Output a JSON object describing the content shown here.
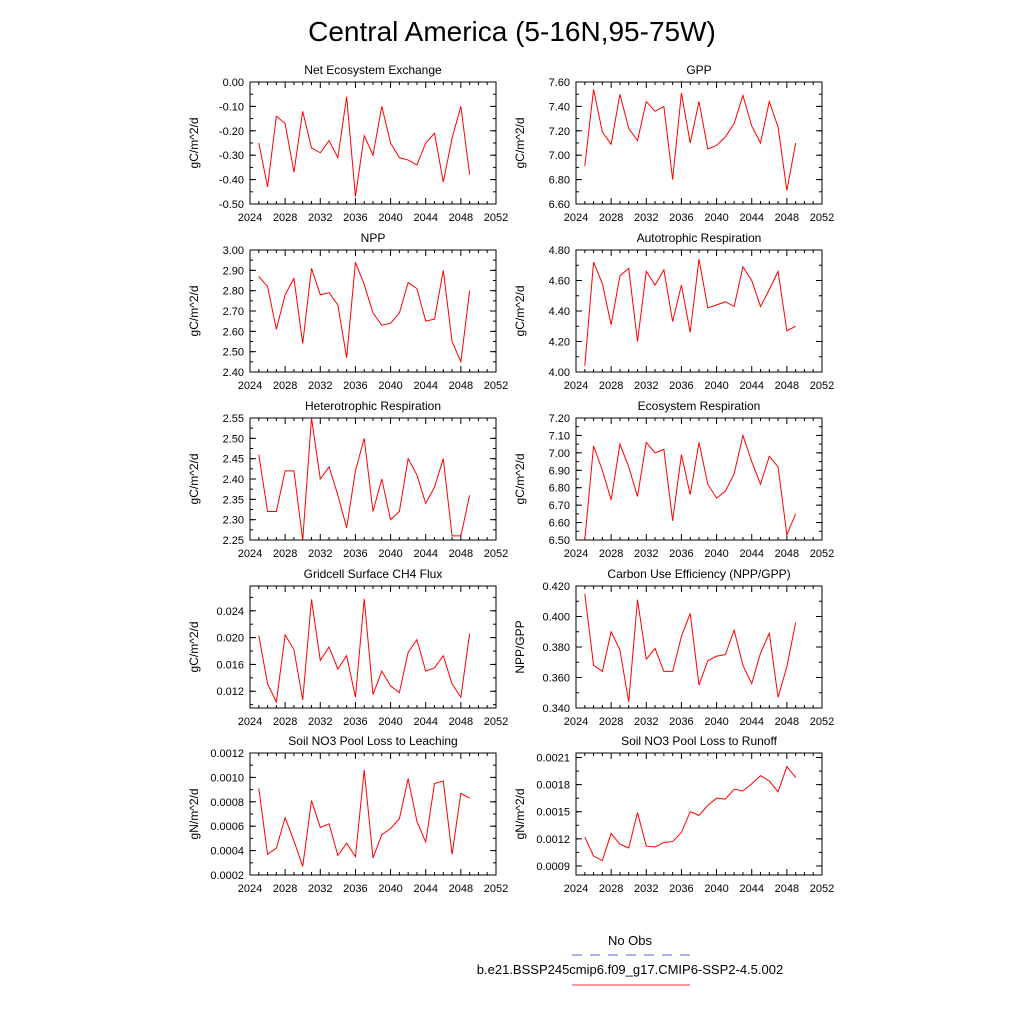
{
  "figure": {
    "title": "Central America (5-16N,95-75W)",
    "legend": [
      {
        "label": "No Obs",
        "color": "#4a6ad0",
        "style": "dashed"
      },
      {
        "label": "b.e21.BSSP245cmip6.f09_g17.CMIP6-SSP2-4.5.002",
        "color": "#e8343a",
        "style": "solid"
      }
    ]
  },
  "chart_data": [
    {
      "type": "line",
      "title": "Net Ecosystem Exchange",
      "ylabel": "gC/m^2/d",
      "xlim": [
        2024,
        2052
      ],
      "xticks": [
        2024,
        2028,
        2032,
        2036,
        2040,
        2044,
        2048,
        2052
      ],
      "ylim": [
        -0.5,
        0.0
      ],
      "yticks": [
        "0.00",
        "-0.10",
        "-0.20",
        "-0.30",
        "-0.40",
        "-0.50"
      ],
      "x": [
        2025,
        2026,
        2027,
        2028,
        2029,
        2030,
        2031,
        2032,
        2033,
        2034,
        2035,
        2036,
        2037,
        2038,
        2039,
        2040,
        2041,
        2042,
        2043,
        2044,
        2045,
        2046,
        2047,
        2048,
        2049
      ],
      "series": [
        {
          "name": "b.e21.BSSP245cmip6.f09_g17.CMIP6-SSP2-4.5.002",
          "color": "#ff0000",
          "values": [
            -0.25,
            -0.43,
            -0.14,
            -0.17,
            -0.37,
            -0.12,
            -0.27,
            -0.29,
            -0.24,
            -0.31,
            -0.06,
            -0.47,
            -0.22,
            -0.3,
            -0.1,
            -0.25,
            -0.31,
            -0.32,
            -0.34,
            -0.25,
            -0.21,
            -0.41,
            -0.23,
            -0.1,
            -0.38
          ]
        }
      ]
    },
    {
      "type": "line",
      "title": "GPP",
      "ylabel": "gC/m^2/d",
      "xlim": [
        2024,
        2052
      ],
      "xticks": [
        2024,
        2028,
        2032,
        2036,
        2040,
        2044,
        2048,
        2052
      ],
      "ylim": [
        6.6,
        7.6
      ],
      "yticks": [
        "7.60",
        "7.40",
        "7.20",
        "7.00",
        "6.80",
        "6.60"
      ],
      "x": [
        2025,
        2026,
        2027,
        2028,
        2029,
        2030,
        2031,
        2032,
        2033,
        2034,
        2035,
        2036,
        2037,
        2038,
        2039,
        2040,
        2041,
        2042,
        2043,
        2044,
        2045,
        2046,
        2047,
        2048,
        2049
      ],
      "series": [
        {
          "name": "b.e21.BSSP245cmip6.f09_g17.CMIP6-SSP2-4.5.002",
          "color": "#ff0000",
          "values": [
            6.91,
            7.54,
            7.19,
            7.09,
            7.5,
            7.22,
            7.12,
            7.44,
            7.36,
            7.4,
            6.8,
            7.51,
            7.1,
            7.44,
            7.05,
            7.08,
            7.15,
            7.26,
            7.49,
            7.24,
            7.1,
            7.44,
            7.23,
            6.71,
            7.1
          ]
        }
      ]
    },
    {
      "type": "line",
      "title": "NPP",
      "ylabel": "gC/m^2/d",
      "xlim": [
        2024,
        2052
      ],
      "xticks": [
        2024,
        2028,
        2032,
        2036,
        2040,
        2044,
        2048,
        2052
      ],
      "ylim": [
        2.4,
        3.0
      ],
      "yticks": [
        "3.00",
        "2.90",
        "2.80",
        "2.70",
        "2.60",
        "2.50",
        "2.40"
      ],
      "x": [
        2025,
        2026,
        2027,
        2028,
        2029,
        2030,
        2031,
        2032,
        2033,
        2034,
        2035,
        2036,
        2037,
        2038,
        2039,
        2040,
        2041,
        2042,
        2043,
        2044,
        2045,
        2046,
        2047,
        2048,
        2049
      ],
      "series": [
        {
          "name": "b.e21.BSSP245cmip6.f09_g17.CMIP6-SSP2-4.5.002",
          "color": "#ff0000",
          "values": [
            2.87,
            2.82,
            2.61,
            2.78,
            2.86,
            2.54,
            2.91,
            2.78,
            2.79,
            2.73,
            2.47,
            2.94,
            2.83,
            2.69,
            2.63,
            2.64,
            2.69,
            2.84,
            2.81,
            2.65,
            2.66,
            2.9,
            2.55,
            2.45,
            2.8
          ]
        }
      ]
    },
    {
      "type": "line",
      "title": "Autotrophic Respiration",
      "ylabel": "gC/m^2/d",
      "xlim": [
        2024,
        2052
      ],
      "xticks": [
        2024,
        2028,
        2032,
        2036,
        2040,
        2044,
        2048,
        2052
      ],
      "ylim": [
        4.0,
        4.8
      ],
      "yticks": [
        "4.80",
        "4.60",
        "4.40",
        "4.20",
        "4.00"
      ],
      "x": [
        2025,
        2026,
        2027,
        2028,
        2029,
        2030,
        2031,
        2032,
        2033,
        2034,
        2035,
        2036,
        2037,
        2038,
        2039,
        2040,
        2041,
        2042,
        2043,
        2044,
        2045,
        2046,
        2047,
        2048,
        2049
      ],
      "series": [
        {
          "name": "b.e21.BSSP245cmip6.f09_g17.CMIP6-SSP2-4.5.002",
          "color": "#ff0000",
          "values": [
            4.04,
            4.72,
            4.58,
            4.31,
            4.63,
            4.68,
            4.2,
            4.66,
            4.57,
            4.67,
            4.33,
            4.57,
            4.26,
            4.74,
            4.42,
            4.44,
            4.46,
            4.43,
            4.69,
            4.6,
            4.43,
            4.54,
            4.66,
            4.27,
            4.3
          ]
        }
      ]
    },
    {
      "type": "line",
      "title": "Heterotrophic Respiration",
      "ylabel": "gC/m^2/d",
      "xlim": [
        2024,
        2052
      ],
      "xticks": [
        2024,
        2028,
        2032,
        2036,
        2040,
        2044,
        2048,
        2052
      ],
      "ylim": [
        2.25,
        2.55
      ],
      "yticks": [
        "2.55",
        "2.50",
        "2.45",
        "2.40",
        "2.35",
        "2.30",
        "2.25"
      ],
      "x": [
        2025,
        2026,
        2027,
        2028,
        2029,
        2030,
        2031,
        2032,
        2033,
        2034,
        2035,
        2036,
        2037,
        2038,
        2039,
        2040,
        2041,
        2042,
        2043,
        2044,
        2045,
        2046,
        2047,
        2048,
        2049
      ],
      "series": [
        {
          "name": "b.e21.BSSP245cmip6.f09_g17.CMIP6-SSP2-4.5.002",
          "color": "#ff0000",
          "values": [
            2.46,
            2.32,
            2.32,
            2.42,
            2.42,
            2.25,
            2.55,
            2.4,
            2.43,
            2.36,
            2.28,
            2.42,
            2.5,
            2.32,
            2.4,
            2.3,
            2.32,
            2.45,
            2.41,
            2.34,
            2.38,
            2.45,
            2.26,
            2.26,
            2.36
          ]
        }
      ]
    },
    {
      "type": "line",
      "title": "Ecosystem Respiration",
      "ylabel": "gC/m^2/d",
      "xlim": [
        2024,
        2052
      ],
      "xticks": [
        2024,
        2028,
        2032,
        2036,
        2040,
        2044,
        2048,
        2052
      ],
      "ylim": [
        6.5,
        7.2
      ],
      "yticks": [
        "7.20",
        "7.10",
        "7.00",
        "6.90",
        "6.80",
        "6.70",
        "6.60",
        "6.50"
      ],
      "x": [
        2025,
        2026,
        2027,
        2028,
        2029,
        2030,
        2031,
        2032,
        2033,
        2034,
        2035,
        2036,
        2037,
        2038,
        2039,
        2040,
        2041,
        2042,
        2043,
        2044,
        2045,
        2046,
        2047,
        2048,
        2049
      ],
      "series": [
        {
          "name": "b.e21.BSSP245cmip6.f09_g17.CMIP6-SSP2-4.5.002",
          "color": "#ff0000",
          "values": [
            6.5,
            7.04,
            6.9,
            6.73,
            7.05,
            6.92,
            6.75,
            7.06,
            7.0,
            7.02,
            6.61,
            6.99,
            6.76,
            7.06,
            6.82,
            6.74,
            6.78,
            6.88,
            7.1,
            6.95,
            6.82,
            6.98,
            6.92,
            6.53,
            6.65
          ]
        }
      ]
    },
    {
      "type": "line",
      "title": "Gridcell Surface CH4 Flux",
      "ylabel": "gC/m^2/d",
      "xlim": [
        2024,
        2052
      ],
      "xticks": [
        2024,
        2028,
        2032,
        2036,
        2040,
        2044,
        2048,
        2052
      ],
      "ylim": [
        0.0095,
        0.0277
      ],
      "yticks": [
        "0.024",
        "0.020",
        "0.016",
        "0.012"
      ],
      "ytick_values": [
        0.024,
        0.02,
        0.016,
        0.012
      ],
      "x": [
        2025,
        2026,
        2027,
        2028,
        2029,
        2030,
        2031,
        2032,
        2033,
        2034,
        2035,
        2036,
        2037,
        2038,
        2039,
        2040,
        2041,
        2042,
        2043,
        2044,
        2045,
        2046,
        2047,
        2048,
        2049
      ],
      "series": [
        {
          "name": "b.e21.BSSP245cmip6.f09_g17.CMIP6-SSP2-4.5.002",
          "color": "#ff0000",
          "values": [
            0.0203,
            0.0131,
            0.0104,
            0.0204,
            0.0182,
            0.0107,
            0.0257,
            0.0166,
            0.0186,
            0.0153,
            0.0173,
            0.0111,
            0.0258,
            0.0115,
            0.015,
            0.0128,
            0.0118,
            0.0178,
            0.0197,
            0.015,
            0.0155,
            0.0173,
            0.0131,
            0.0111,
            0.0206
          ]
        }
      ]
    },
    {
      "type": "line",
      "title": "Carbon Use Efficiency (NPP/GPP)",
      "ylabel": "NPP/GPP",
      "xlim": [
        2024,
        2052
      ],
      "xticks": [
        2024,
        2028,
        2032,
        2036,
        2040,
        2044,
        2048,
        2052
      ],
      "ylim": [
        0.34,
        0.42
      ],
      "yticks": [
        "0.420",
        "0.400",
        "0.380",
        "0.360",
        "0.340"
      ],
      "x": [
        2025,
        2026,
        2027,
        2028,
        2029,
        2030,
        2031,
        2032,
        2033,
        2034,
        2035,
        2036,
        2037,
        2038,
        2039,
        2040,
        2041,
        2042,
        2043,
        2044,
        2045,
        2046,
        2047,
        2048,
        2049
      ],
      "series": [
        {
          "name": "b.e21.BSSP245cmip6.f09_g17.CMIP6-SSP2-4.5.002",
          "color": "#ff0000",
          "values": [
            0.415,
            0.368,
            0.364,
            0.39,
            0.378,
            0.344,
            0.411,
            0.372,
            0.379,
            0.364,
            0.364,
            0.387,
            0.402,
            0.355,
            0.371,
            0.374,
            0.375,
            0.391,
            0.368,
            0.356,
            0.376,
            0.389,
            0.347,
            0.367,
            0.396
          ]
        }
      ]
    },
    {
      "type": "line",
      "title": "Soil NO3 Pool Loss to Leaching",
      "ylabel": "gN/m^2/d",
      "xlim": [
        2024,
        2052
      ],
      "xticks": [
        2024,
        2028,
        2032,
        2036,
        2040,
        2044,
        2048,
        2052
      ],
      "ylim": [
        0.0002,
        0.0012
      ],
      "yticks": [
        "0.0012",
        "0.0010",
        "0.0008",
        "0.0006",
        "0.0004",
        "0.0002"
      ],
      "x": [
        2025,
        2026,
        2027,
        2028,
        2029,
        2030,
        2031,
        2032,
        2033,
        2034,
        2035,
        2036,
        2037,
        2038,
        2039,
        2040,
        2041,
        2042,
        2043,
        2044,
        2045,
        2046,
        2047,
        2048,
        2049
      ],
      "series": [
        {
          "name": "b.e21.BSSP245cmip6.f09_g17.CMIP6-SSP2-4.5.002",
          "color": "#ff0000",
          "values": [
            0.00091,
            0.00037,
            0.00042,
            0.00067,
            0.00048,
            0.00027,
            0.00081,
            0.00059,
            0.00062,
            0.00036,
            0.00046,
            0.00035,
            0.00106,
            0.00034,
            0.00053,
            0.00058,
            0.00066,
            0.00099,
            0.00064,
            0.00047,
            0.00095,
            0.00097,
            0.00037,
            0.00087,
            0.00083
          ]
        }
      ]
    },
    {
      "type": "line",
      "title": "Soil NO3 Pool Loss to Runoff",
      "ylabel": "gN/m^2/d",
      "xlim": [
        2024,
        2052
      ],
      "xticks": [
        2024,
        2028,
        2032,
        2036,
        2040,
        2044,
        2048,
        2052
      ],
      "ylim": [
        0.0008,
        0.00215
      ],
      "yticks": [
        "0.0021",
        "0.0018",
        "0.0015",
        "0.0012",
        "0.0009"
      ],
      "ytick_values": [
        0.0021,
        0.0018,
        0.0015,
        0.0012,
        0.0009
      ],
      "x": [
        2025,
        2026,
        2027,
        2028,
        2029,
        2030,
        2031,
        2032,
        2033,
        2034,
        2035,
        2036,
        2037,
        2038,
        2039,
        2040,
        2041,
        2042,
        2043,
        2044,
        2045,
        2046,
        2047,
        2048,
        2049
      ],
      "series": [
        {
          "name": "b.e21.BSSP245cmip6.f09_g17.CMIP6-SSP2-4.5.002",
          "color": "#ff0000",
          "values": [
            0.00122,
            0.00101,
            0.00096,
            0.00126,
            0.00114,
            0.0011,
            0.00149,
            0.00112,
            0.00111,
            0.00116,
            0.00117,
            0.00127,
            0.0015,
            0.00146,
            0.00157,
            0.00165,
            0.00164,
            0.00175,
            0.00173,
            0.00181,
            0.0019,
            0.00184,
            0.00172,
            0.002,
            0.00188
          ]
        }
      ]
    }
  ]
}
